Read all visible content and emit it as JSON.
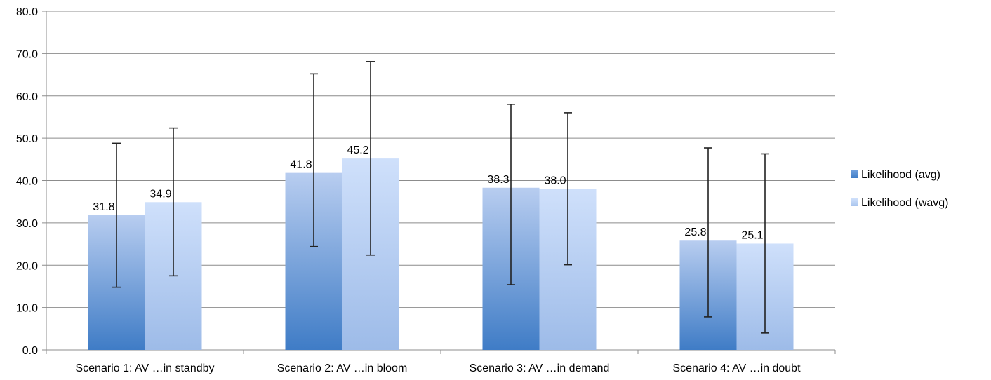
{
  "chart_data": {
    "type": "bar",
    "title": "",
    "xlabel": "",
    "ylabel": "",
    "ylim": [
      0,
      80
    ],
    "yticks": [
      0,
      10,
      20,
      30,
      40,
      50,
      60,
      70,
      80
    ],
    "ytick_labels": [
      "0.0",
      "10.0",
      "20.0",
      "30.0",
      "40.0",
      "50.0",
      "60.0",
      "70.0",
      "80.0"
    ],
    "grid": true,
    "legend_position": "right",
    "categories": [
      "Scenario 1: AV  …in standby",
      "Scenario 2: AV …in bloom",
      "Scenario 3: AV …in demand",
      "Scenario 4:  AV …in doubt"
    ],
    "series": [
      {
        "name": "Likelihood (avg)",
        "values": [
          31.8,
          41.8,
          38.3,
          25.8
        ],
        "labels": [
          "31.8",
          "41.8",
          "38.3",
          "25.8"
        ],
        "error_low": [
          14.8,
          24.4,
          15.4,
          7.8
        ],
        "error_high": [
          48.8,
          65.2,
          58.0,
          47.7
        ],
        "color_top": "#b8cdf0",
        "color_bottom": "#3f7cc6"
      },
      {
        "name": "Likelihood (wavg)",
        "values": [
          34.9,
          45.2,
          38.0,
          25.1
        ],
        "labels": [
          "34.9",
          "45.2",
          "38.0",
          "25.1"
        ],
        "error_low": [
          17.5,
          22.4,
          20.1,
          4.0
        ],
        "error_high": [
          52.4,
          68.1,
          56.0,
          46.3
        ],
        "color_top": "#cfe0fb",
        "color_bottom": "#9dbbe8"
      }
    ]
  }
}
